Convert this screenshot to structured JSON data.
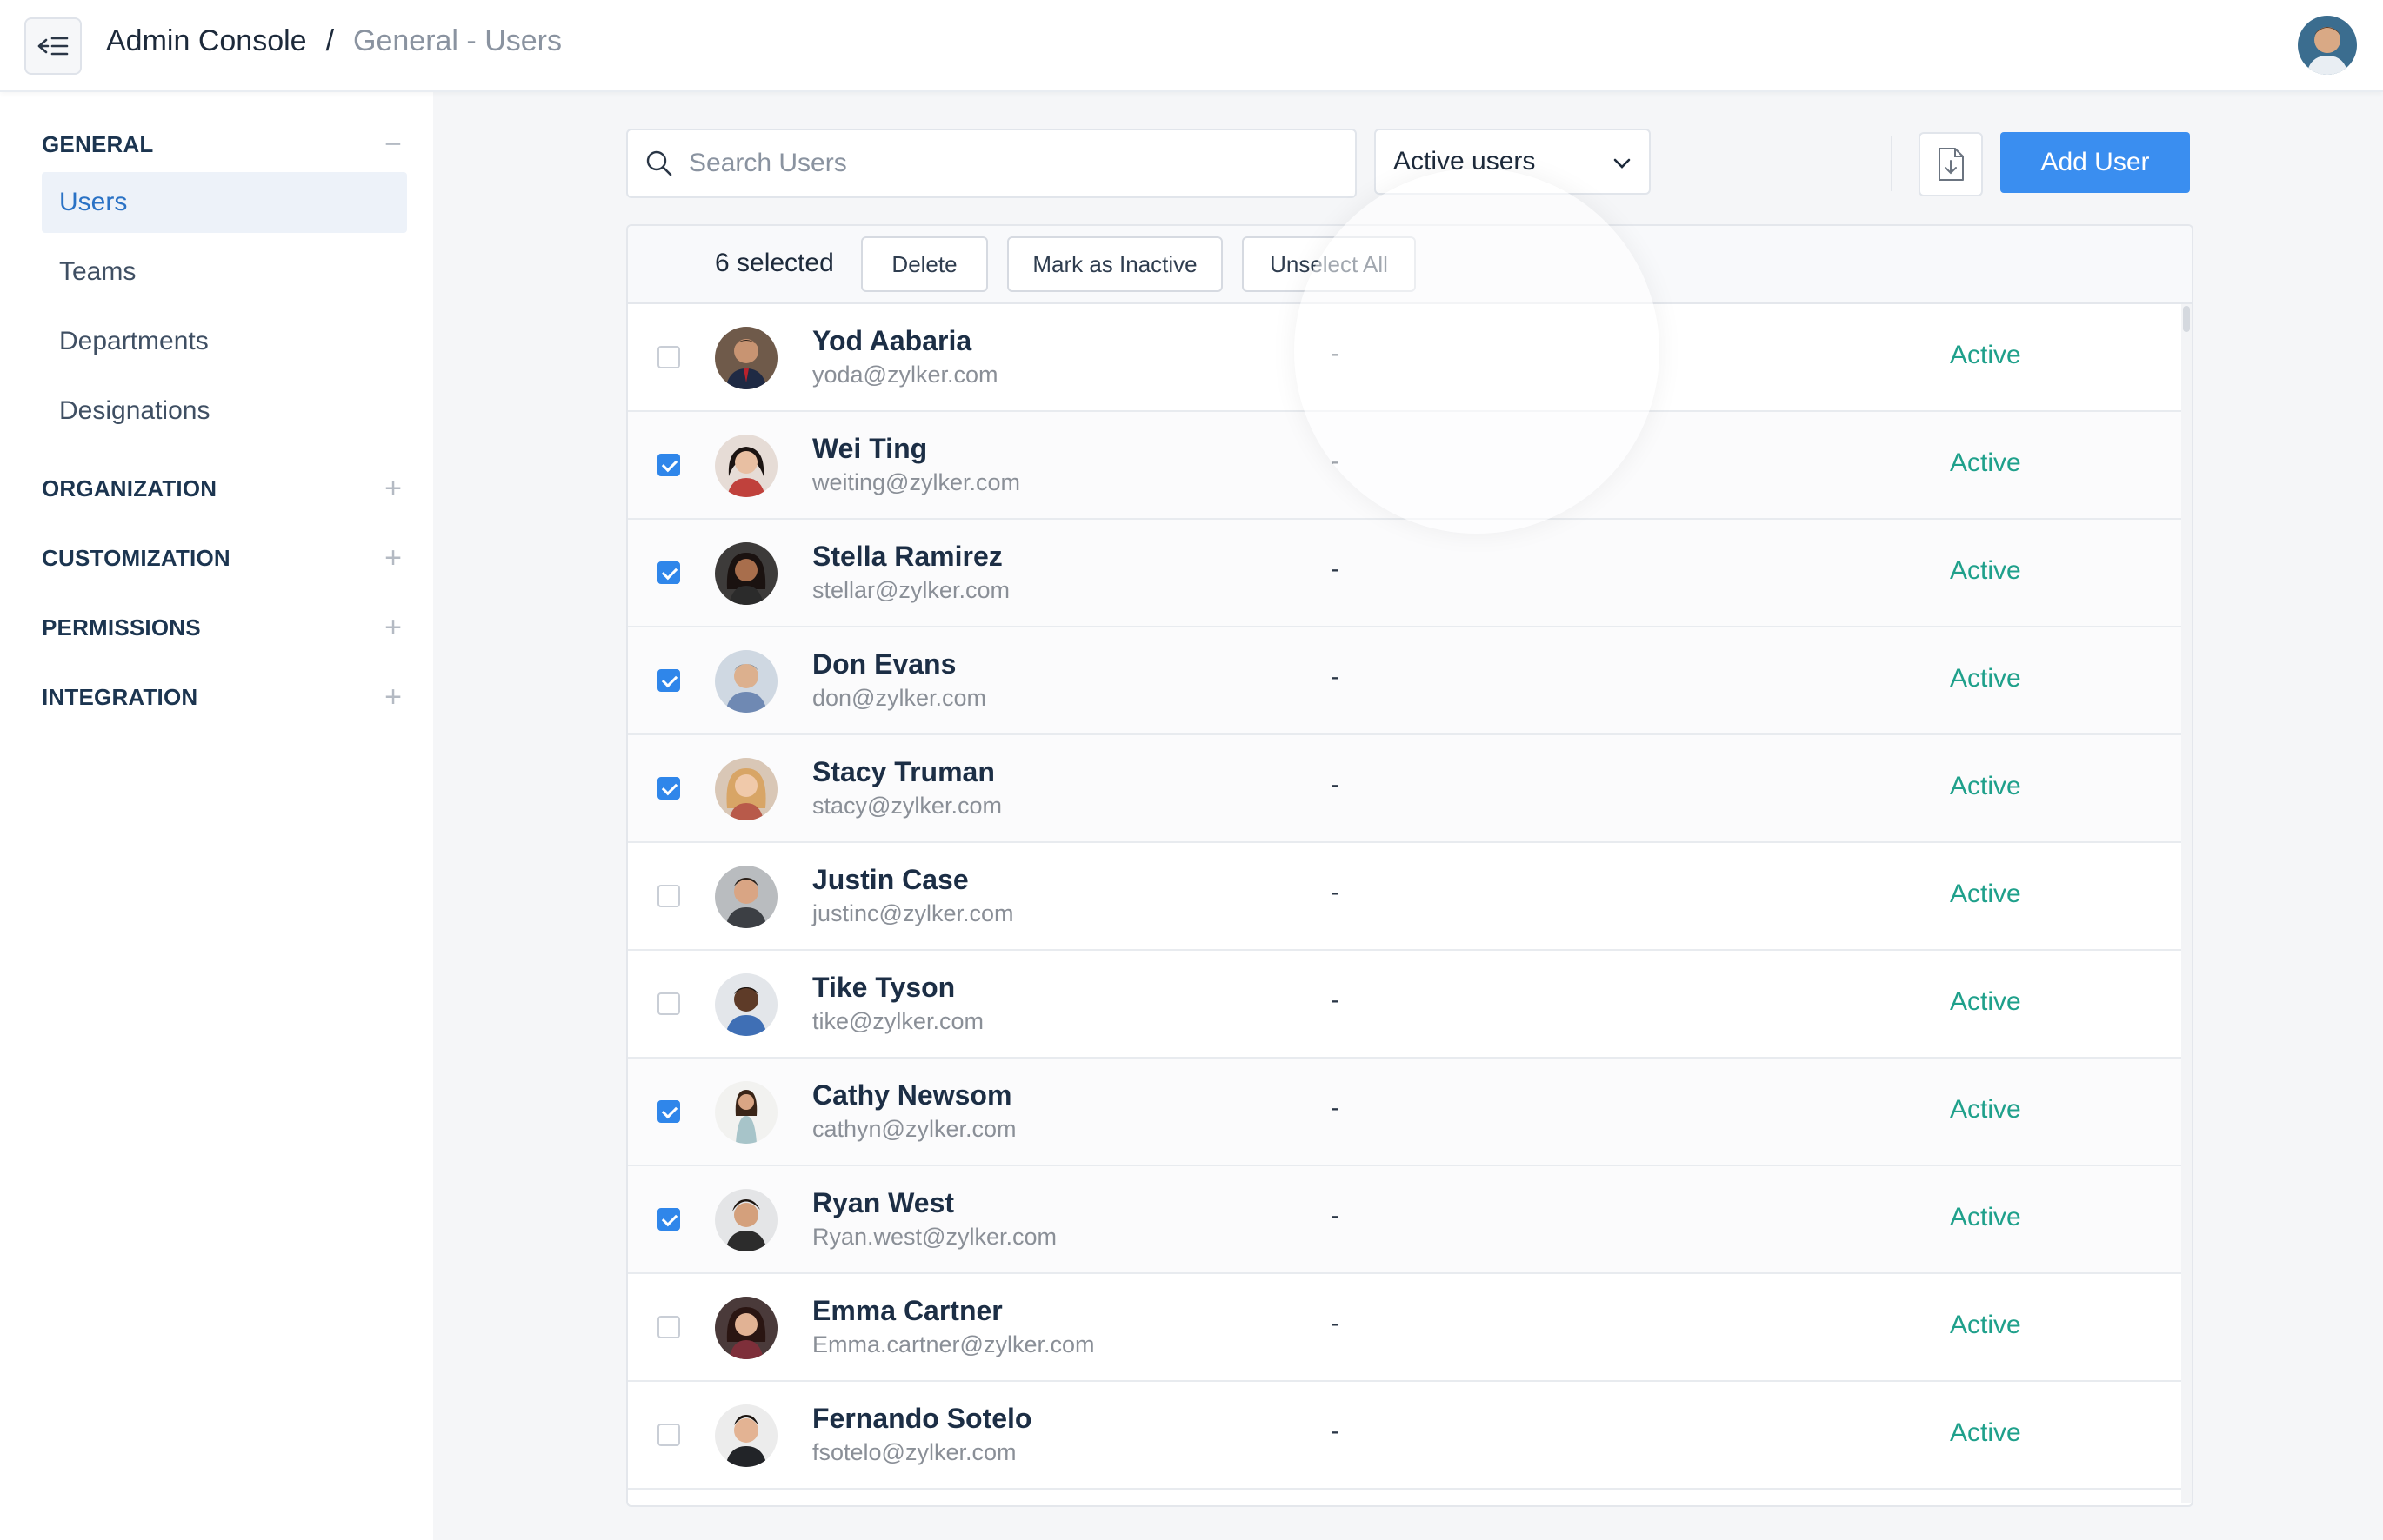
{
  "header": {
    "breadcrumb_current": "Admin Console",
    "breadcrumb_sep": "/",
    "breadcrumb_page": "General - Users",
    "collapse_icon": "collapse-menu-icon",
    "avatar": "user-avatar"
  },
  "sidebar": {
    "sections": [
      {
        "title": "GENERAL",
        "toggle": "−"
      },
      {
        "title": "ORGANIZATION",
        "toggle": "+"
      },
      {
        "title": "CUSTOMIZATION",
        "toggle": "+"
      },
      {
        "title": "PERMISSIONS",
        "toggle": "+"
      },
      {
        "title": "INTEGRATION",
        "toggle": "+"
      }
    ],
    "general_items": [
      {
        "label": "Users",
        "active": true
      },
      {
        "label": "Teams",
        "active": false
      },
      {
        "label": "Departments",
        "active": false
      },
      {
        "label": "Designations",
        "active": false
      }
    ]
  },
  "toolbar": {
    "search_placeholder": "Search Users",
    "filter_value": "Active users",
    "export_icon": "export-file-icon",
    "add_label": "Add User"
  },
  "bulk": {
    "selected_text": "6 selected",
    "delete_label": "Delete",
    "inactive_label": "Mark as Inactive",
    "unselect_label": "Unselect All"
  },
  "colors": {
    "accent": "#3a8ef0",
    "status_active": "#1fa08b",
    "sidebar_active_bg": "#edf2f9"
  },
  "users": [
    {
      "name": "Yod Aabaria",
      "email": "yoda@zylker.com",
      "dept": "-",
      "status": "Active",
      "checked": false
    },
    {
      "name": "Wei Ting",
      "email": "weiting@zylker.com",
      "dept": "-",
      "status": "Active",
      "checked": true
    },
    {
      "name": "Stella Ramirez",
      "email": "stellar@zylker.com",
      "dept": "-",
      "status": "Active",
      "checked": true
    },
    {
      "name": "Don Evans",
      "email": "don@zylker.com",
      "dept": "-",
      "status": "Active",
      "checked": true
    },
    {
      "name": "Stacy Truman",
      "email": "stacy@zylker.com",
      "dept": "-",
      "status": "Active",
      "checked": true
    },
    {
      "name": "Justin Case",
      "email": "justinc@zylker.com",
      "dept": "-",
      "status": "Active",
      "checked": false
    },
    {
      "name": "Tike Tyson",
      "email": "tike@zylker.com",
      "dept": "-",
      "status": "Active",
      "checked": false
    },
    {
      "name": "Cathy Newsom",
      "email": "cathyn@zylker.com",
      "dept": "-",
      "status": "Active",
      "checked": true
    },
    {
      "name": "Ryan West",
      "email": "Ryan.west@zylker.com",
      "dept": "-",
      "status": "Active",
      "checked": true
    },
    {
      "name": "Emma Cartner",
      "email": "Emma.cartner@zylker.com",
      "dept": "-",
      "status": "Active",
      "checked": false
    },
    {
      "name": "Fernando Sotelo",
      "email": "fsotelo@zylker.com",
      "dept": "-",
      "status": "Active",
      "checked": false
    }
  ]
}
